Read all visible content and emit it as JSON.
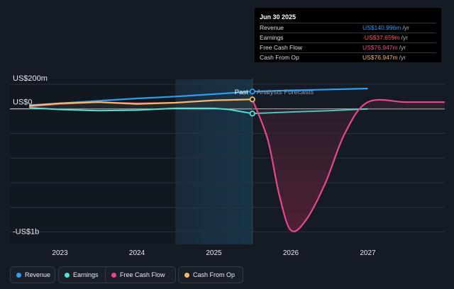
{
  "chart_data": {
    "type": "line",
    "title": "",
    "xlabel": "",
    "ylabel": "",
    "y_ticks": [
      "US$200m",
      "US$0",
      "-US$1b"
    ],
    "x_ticks": [
      "2023",
      "2024",
      "2025",
      "2026",
      "2027"
    ],
    "xlim": [
      2022.35,
      2028.0
    ],
    "ylim": [
      -1100,
      240
    ],
    "grid": true,
    "legend_position": "bottom-left",
    "forecast_start": 2025.5,
    "past_label": "Past",
    "forecast_label": "Analysts Forecasts",
    "series": [
      {
        "name": "Revenue",
        "color": "#2f9ef0",
        "x": [
          2022.6,
          2023.0,
          2023.5,
          2024.0,
          2024.5,
          2025.0,
          2025.5,
          2026.0,
          2026.5,
          2027.0
        ],
        "y": [
          30,
          45,
          65,
          85,
          100,
          120,
          141,
          150,
          158,
          165
        ]
      },
      {
        "name": "Earnings",
        "color": "#56e0d3",
        "x": [
          2022.6,
          2023.0,
          2023.5,
          2024.0,
          2024.5,
          2025.0,
          2025.2,
          2025.5,
          2026.0,
          2026.5,
          2027.0
        ],
        "y": [
          10,
          -5,
          -15,
          -10,
          5,
          5,
          -5,
          -38,
          -25,
          -15,
          0
        ],
        "forecast_from": 2025.5
      },
      {
        "name": "Free Cash Flow",
        "color": "#e8478f",
        "x": [
          2022.6,
          2023.0,
          2023.5,
          2024.0,
          2024.5,
          2025.0,
          2025.5,
          2025.7,
          2025.85,
          2026.0,
          2026.2,
          2026.45,
          2026.7,
          2027.0,
          2027.5,
          2028.0
        ],
        "y": [
          20,
          40,
          55,
          45,
          50,
          70,
          77,
          -250,
          -700,
          -985,
          -900,
          -600,
          -200,
          55,
          55,
          55
        ],
        "forecast_from": 2025.5
      },
      {
        "name": "Cash From Op",
        "color": "#f5b96b",
        "x": [
          2022.6,
          2023.0,
          2023.5,
          2024.0,
          2024.5,
          2025.0,
          2025.5
        ],
        "y": [
          25,
          45,
          55,
          40,
          50,
          70,
          77
        ]
      }
    ]
  },
  "tooltip": {
    "date": "Jun 30 2025",
    "rows": [
      {
        "label": "Revenue",
        "value": "US$140.996m",
        "unit": "/yr",
        "color": "#2f9ef0"
      },
      {
        "label": "Earnings",
        "value": "-US$37.659m",
        "unit": "/yr",
        "color": "#ff5a5f"
      },
      {
        "label": "Free Cash Flow",
        "value": "US$76.947m",
        "unit": "/yr",
        "color": "#e8478f"
      },
      {
        "label": "Cash From Op",
        "value": "US$76.947m",
        "unit": "/yr",
        "color": "#f5b96b"
      }
    ]
  },
  "legend": [
    {
      "label": "Revenue",
      "color": "#2f9ef0",
      "icon": "revenue-dot"
    },
    {
      "label": "Earnings",
      "color": "#56e0d3",
      "icon": "earnings-dot"
    },
    {
      "label": "Free Cash Flow",
      "color": "#e8478f",
      "icon": "fcf-dot"
    },
    {
      "label": "Cash From Op",
      "color": "#f5b96b",
      "icon": "cfo-dot"
    }
  ]
}
